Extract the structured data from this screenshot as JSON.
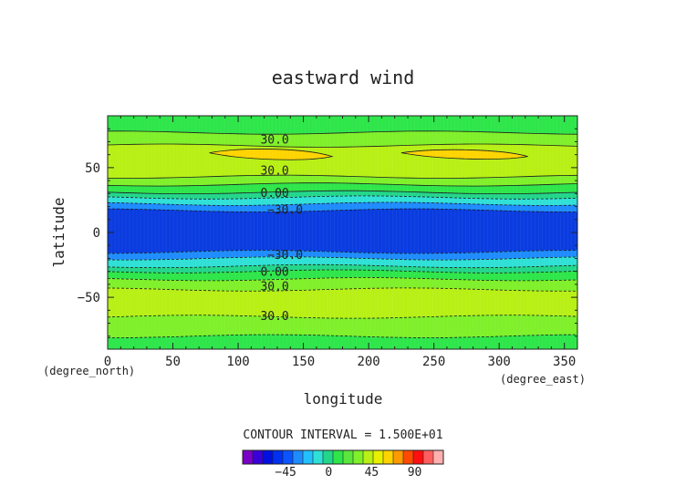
{
  "chart_data": {
    "type": "heatmap",
    "title": "eastward wind",
    "xlabel": "longitude",
    "ylabel": "latitude",
    "x_unit": "(degree_east)",
    "y_unit": "(degree_north)",
    "xlim": [
      0,
      360
    ],
    "ylim": [
      -90,
      90
    ],
    "x_ticks": [
      "0",
      "50",
      "100",
      "150",
      "200",
      "250",
      "300",
      "350"
    ],
    "y_ticks": [
      "50",
      "0",
      "−50"
    ],
    "contour_interval_text": "CONTOUR INTERVAL = 1.500E+01",
    "contour_labels": [
      {
        "text": "30.0",
        "lon": 128,
        "lat": 72
      },
      {
        "text": "30.0",
        "lon": 128,
        "lat": 48
      },
      {
        "text": "0.00",
        "lon": 128,
        "lat": 31
      },
      {
        "text": "−30.0",
        "lon": 136,
        "lat": 18
      },
      {
        "text": "−30.0",
        "lon": 136,
        "lat": -17
      },
      {
        "text": "0.00",
        "lon": 128,
        "lat": -30
      },
      {
        "text": "30.0",
        "lon": 128,
        "lat": -41
      },
      {
        "text": "30.0",
        "lon": 128,
        "lat": -64
      }
    ],
    "latitude_bands": [
      {
        "lat_from": 77,
        "lat_to": 88,
        "fill": "#2ee64a"
      },
      {
        "lat_from": 67,
        "lat_to": 77,
        "fill": "#7ff02a"
      },
      {
        "lat_from": 43,
        "lat_to": 67,
        "fill": "#b8f015"
      },
      {
        "lat_from": 37,
        "lat_to": 43,
        "fill": "#7ff02a"
      },
      {
        "lat_from": 31,
        "lat_to": 37,
        "fill": "#2ee64a"
      },
      {
        "lat_from": 27,
        "lat_to": 31,
        "fill": "#22d68a"
      },
      {
        "lat_from": 22,
        "lat_to": 27,
        "fill": "#2fe0d6"
      },
      {
        "lat_from": 17,
        "lat_to": 22,
        "fill": "#1e8cff"
      },
      {
        "lat_from": -15,
        "lat_to": 17,
        "fill": "#0a3ce0"
      },
      {
        "lat_from": -20,
        "lat_to": -15,
        "fill": "#1e8cff"
      },
      {
        "lat_from": -26,
        "lat_to": -20,
        "fill": "#2fe0d6"
      },
      {
        "lat_from": -30,
        "lat_to": -26,
        "fill": "#22d68a"
      },
      {
        "lat_from": -36,
        "lat_to": -30,
        "fill": "#2ee64a"
      },
      {
        "lat_from": -44,
        "lat_to": -36,
        "fill": "#7ff02a"
      },
      {
        "lat_from": -65,
        "lat_to": -44,
        "fill": "#b8f015"
      },
      {
        "lat_from": -80,
        "lat_to": -65,
        "fill": "#7ff02a"
      },
      {
        "lat_from": -88,
        "lat_to": -80,
        "fill": "#2ee64a"
      }
    ],
    "highs": [
      {
        "lon_from": 78,
        "lon_to": 172,
        "lat": 60,
        "half_height": 4,
        "fill": "#ffd400"
      },
      {
        "lon_from": 225,
        "lon_to": 322,
        "lat": 60,
        "half_height": 3.5,
        "fill": "#ffd400"
      }
    ],
    "colorbar": {
      "ticks": [
        "−45",
        "0",
        "45",
        "90"
      ],
      "tick_values": [
        -45,
        0,
        45,
        90
      ],
      "range": [
        -90,
        120
      ],
      "colors": [
        "#7a00c8",
        "#3a00d8",
        "#0010e0",
        "#0030f0",
        "#0a55ff",
        "#1e8cff",
        "#22c0ff",
        "#2fe0d6",
        "#22d68a",
        "#2ee64a",
        "#5ae63a",
        "#7ff02a",
        "#b8f015",
        "#e8f000",
        "#ffd400",
        "#ff9a00",
        "#ff4a00",
        "#ff1010",
        "#ff5e5e",
        "#ffb0b0"
      ]
    }
  }
}
